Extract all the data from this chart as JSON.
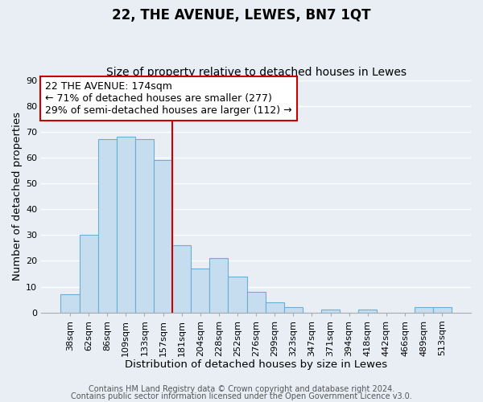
{
  "title": "22, THE AVENUE, LEWES, BN7 1QT",
  "subtitle": "Size of property relative to detached houses in Lewes",
  "xlabel": "Distribution of detached houses by size in Lewes",
  "ylabel": "Number of detached properties",
  "bar_labels": [
    "38sqm",
    "62sqm",
    "86sqm",
    "109sqm",
    "133sqm",
    "157sqm",
    "181sqm",
    "204sqm",
    "228sqm",
    "252sqm",
    "276sqm",
    "299sqm",
    "323sqm",
    "347sqm",
    "371sqm",
    "394sqm",
    "418sqm",
    "442sqm",
    "466sqm",
    "489sqm",
    "513sqm"
  ],
  "bar_heights": [
    7,
    30,
    67,
    68,
    67,
    59,
    26,
    17,
    21,
    14,
    8,
    4,
    2,
    0,
    1,
    0,
    1,
    0,
    0,
    2,
    2
  ],
  "bar_color": "#c6ddf0",
  "bar_edge_color": "#6aaed6",
  "ref_line_x": 6.0,
  "ref_line_color": "#cc0000",
  "annotation_text": "22 THE AVENUE: 174sqm\n← 71% of detached houses are smaller (277)\n29% of semi-detached houses are larger (112) →",
  "annotation_box_color": "#ffffff",
  "annotation_box_edge_color": "#cc0000",
  "ylim": [
    0,
    90
  ],
  "yticks": [
    0,
    10,
    20,
    30,
    40,
    50,
    60,
    70,
    80,
    90
  ],
  "footer_line1": "Contains HM Land Registry data © Crown copyright and database right 2024.",
  "footer_line2": "Contains public sector information licensed under the Open Government Licence v3.0.",
  "background_color": "#e8eef4",
  "grid_color": "#ffffff",
  "title_fontsize": 12,
  "subtitle_fontsize": 10,
  "axis_label_fontsize": 9.5,
  "tick_fontsize": 8,
  "annotation_fontsize": 9,
  "footer_fontsize": 7
}
